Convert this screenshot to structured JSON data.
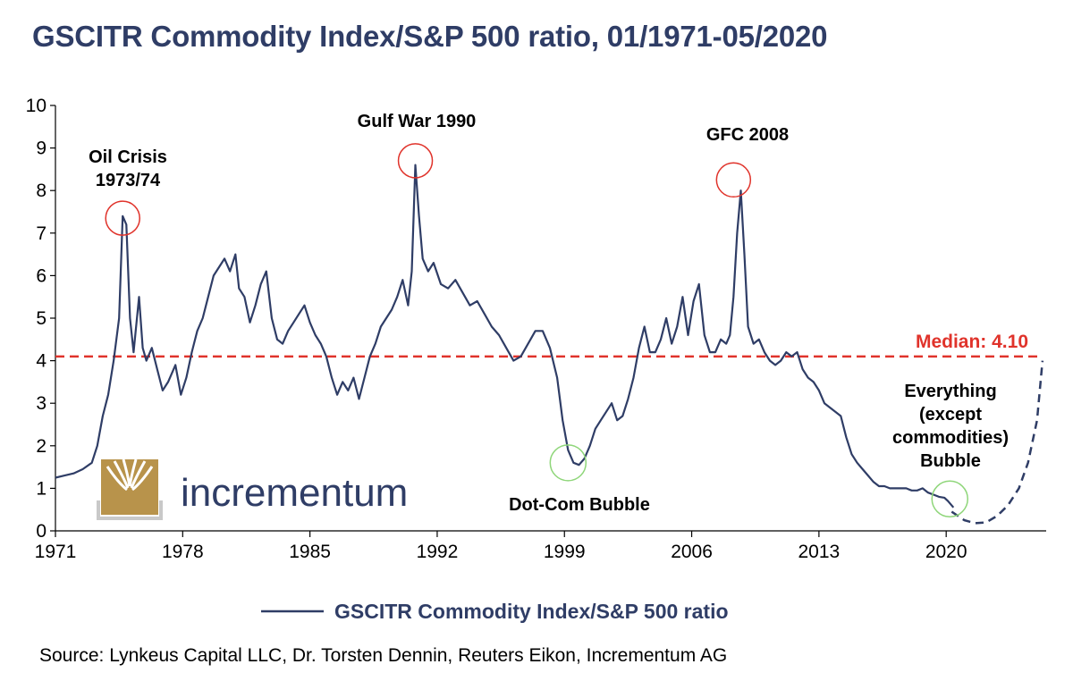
{
  "title": "GSCITR Commodity Index/S&P 500 ratio, 01/1971-05/2020",
  "source": "Source: Lynkeus Capital LLC, Dr. Torsten Dennin, Reuters Eikon, Incrementum AG",
  "logo": {
    "text": "incrementum"
  },
  "colors": {
    "series": "#2f3d66",
    "median": "#e0332b",
    "peak_circle": "#e0332b",
    "trough_circle": "#8fd67a",
    "logo_gold": "#b8934b",
    "logo_gray": "#c9c9c9"
  },
  "chart_data": {
    "type": "line",
    "xlim": [
      1971,
      2025.5
    ],
    "ylim": [
      0,
      10
    ],
    "x_ticks": [
      1971,
      1978,
      1985,
      1992,
      1999,
      2006,
      2013,
      2020
    ],
    "x_tick_labels": [
      "1971",
      "1978",
      "1985",
      "1992",
      "1999",
      "2006",
      "2013",
      "2020"
    ],
    "y_ticks": [
      0,
      1,
      2,
      3,
      4,
      5,
      6,
      7,
      8,
      9,
      10
    ],
    "y_tick_labels": [
      "0",
      "1",
      "2",
      "3",
      "4",
      "5",
      "6",
      "7",
      "8",
      "9",
      "10"
    ],
    "legend": {
      "label": "GSCITR Commodity Index/S&P 500 ratio",
      "position": "bottom"
    },
    "median": {
      "value": 4.1,
      "label": "Median: 4.10"
    },
    "series": [
      {
        "name": "GSCITR Commodity Index/S&P 500 ratio",
        "x": [
          1971.0,
          1971.5,
          1972.0,
          1972.5,
          1973.0,
          1973.3,
          1973.6,
          1973.9,
          1974.2,
          1974.5,
          1974.7,
          1974.9,
          1975.1,
          1975.3,
          1975.6,
          1975.8,
          1976.0,
          1976.3,
          1976.6,
          1976.9,
          1977.2,
          1977.6,
          1977.9,
          1978.2,
          1978.5,
          1978.8,
          1979.1,
          1979.4,
          1979.7,
          1980.0,
          1980.3,
          1980.6,
          1980.9,
          1981.1,
          1981.4,
          1981.7,
          1982.0,
          1982.3,
          1982.6,
          1982.9,
          1983.2,
          1983.5,
          1983.8,
          1984.1,
          1984.4,
          1984.7,
          1985.0,
          1985.3,
          1985.6,
          1985.9,
          1986.2,
          1986.5,
          1986.8,
          1987.1,
          1987.4,
          1987.7,
          1988.0,
          1988.3,
          1988.6,
          1988.9,
          1989.2,
          1989.5,
          1989.8,
          1990.1,
          1990.4,
          1990.6,
          1990.8,
          1991.0,
          1991.2,
          1991.5,
          1991.8,
          1992.2,
          1992.6,
          1993.0,
          1993.4,
          1993.8,
          1994.2,
          1994.6,
          1995.0,
          1995.4,
          1995.8,
          1996.2,
          1996.6,
          1997.0,
          1997.4,
          1997.8,
          1998.2,
          1998.6,
          1998.9,
          1999.2,
          1999.5,
          1999.8,
          2000.1,
          2000.4,
          2000.7,
          2001.0,
          2001.3,
          2001.6,
          2001.9,
          2002.2,
          2002.5,
          2002.8,
          2003.1,
          2003.4,
          2003.7,
          2004.0,
          2004.3,
          2004.6,
          2004.9,
          2005.2,
          2005.5,
          2005.8,
          2006.1,
          2006.4,
          2006.7,
          2007.0,
          2007.3,
          2007.6,
          2007.9,
          2008.1,
          2008.3,
          2008.5,
          2008.7,
          2008.9,
          2009.1,
          2009.4,
          2009.7,
          2010.0,
          2010.3,
          2010.6,
          2010.9,
          2011.2,
          2011.5,
          2011.8,
          2012.1,
          2012.4,
          2012.7,
          2013.0,
          2013.3,
          2013.6,
          2013.9,
          2014.2,
          2014.5,
          2014.8,
          2015.1,
          2015.4,
          2015.7,
          2016.0,
          2016.3,
          2016.6,
          2016.9,
          2017.2,
          2017.5,
          2017.8,
          2018.1,
          2018.4,
          2018.7,
          2019.0,
          2019.3,
          2019.6,
          2019.9,
          2020.1,
          2020.4
        ],
        "y": [
          1.25,
          1.3,
          1.35,
          1.45,
          1.6,
          2.0,
          2.7,
          3.2,
          4.0,
          5.0,
          7.4,
          7.2,
          5.0,
          4.2,
          5.5,
          4.3,
          4.0,
          4.3,
          3.8,
          3.3,
          3.5,
          3.9,
          3.2,
          3.6,
          4.2,
          4.7,
          5.0,
          5.5,
          6.0,
          6.2,
          6.4,
          6.1,
          6.5,
          5.7,
          5.5,
          4.9,
          5.3,
          5.8,
          6.1,
          5.0,
          4.5,
          4.4,
          4.7,
          4.9,
          5.1,
          5.3,
          4.9,
          4.6,
          4.4,
          4.1,
          3.6,
          3.2,
          3.5,
          3.3,
          3.6,
          3.1,
          3.6,
          4.1,
          4.4,
          4.8,
          5.0,
          5.2,
          5.5,
          5.9,
          5.3,
          6.1,
          8.6,
          7.4,
          6.4,
          6.1,
          6.3,
          5.8,
          5.7,
          5.9,
          5.6,
          5.3,
          5.4,
          5.1,
          4.8,
          4.6,
          4.3,
          4.0,
          4.1,
          4.4,
          4.7,
          4.7,
          4.3,
          3.6,
          2.6,
          1.9,
          1.6,
          1.55,
          1.7,
          2.0,
          2.4,
          2.6,
          2.8,
          3.0,
          2.6,
          2.7,
          3.1,
          3.6,
          4.3,
          4.8,
          4.2,
          4.2,
          4.5,
          5.0,
          4.4,
          4.8,
          5.5,
          4.6,
          5.4,
          5.8,
          4.6,
          4.2,
          4.2,
          4.5,
          4.4,
          4.6,
          5.5,
          7.0,
          8.0,
          6.5,
          4.8,
          4.4,
          4.5,
          4.2,
          4.0,
          3.9,
          4.0,
          4.2,
          4.1,
          4.2,
          3.8,
          3.6,
          3.5,
          3.3,
          3.0,
          2.9,
          2.8,
          2.7,
          2.2,
          1.8,
          1.6,
          1.45,
          1.3,
          1.15,
          1.05,
          1.05,
          1.0,
          1.0,
          1.0,
          1.0,
          0.95,
          0.95,
          1.0,
          0.9,
          0.85,
          0.8,
          0.78,
          0.7,
          0.55
        ]
      }
    ],
    "projection": {
      "style": "dashed",
      "x": [
        2020.3,
        2021.0,
        2021.6,
        2022.2,
        2022.8,
        2023.4,
        2024.0,
        2024.5,
        2025.0,
        2025.3
      ],
      "y": [
        0.45,
        0.25,
        0.18,
        0.2,
        0.35,
        0.6,
        1.0,
        1.6,
        2.6,
        4.0
      ]
    },
    "annotations": [
      {
        "text": [
          "Oil Crisis",
          "1973/74"
        ],
        "x": 1974.7,
        "y": 7.35,
        "circle": "peak"
      },
      {
        "text": [
          "Gulf War 1990"
        ],
        "x": 1990.8,
        "y": 8.7,
        "circle": "peak"
      },
      {
        "text": [
          "GFC 2008"
        ],
        "x": 2008.3,
        "y": 8.25,
        "circle": "peak"
      },
      {
        "text": [
          "Dot-Com Bubble"
        ],
        "x": 1999.2,
        "y": 1.6,
        "circle": "trough"
      },
      {
        "text": [
          "Everything",
          "(except",
          "commodities)",
          "Bubble"
        ],
        "x": 2020.2,
        "y": 0.75,
        "circle": "trough"
      }
    ]
  }
}
